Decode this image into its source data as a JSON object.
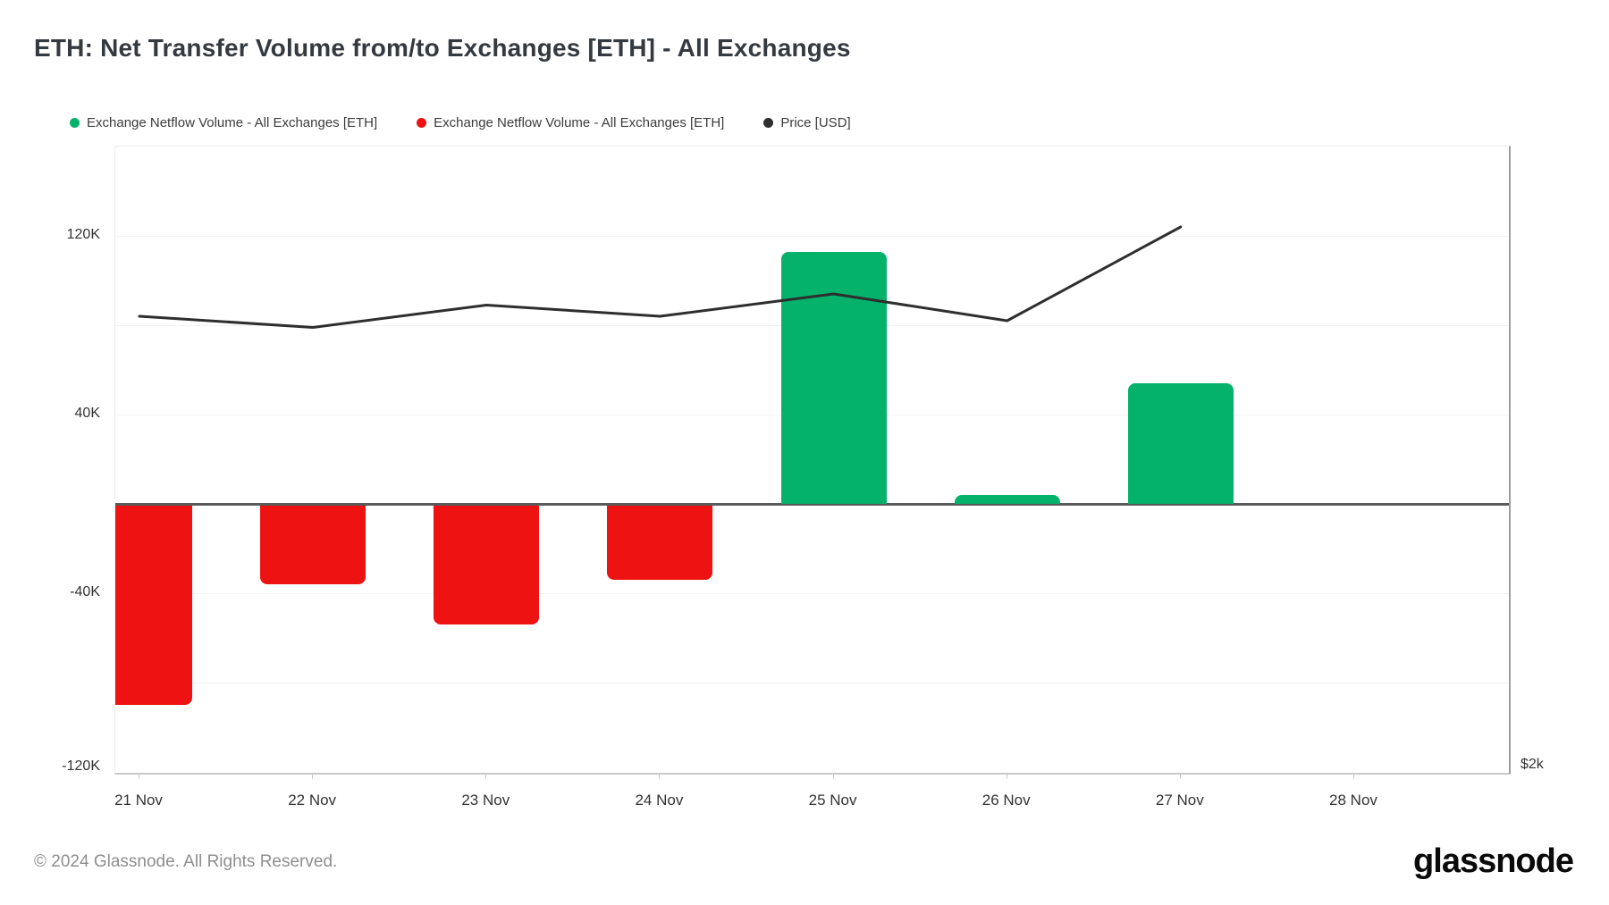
{
  "header": {
    "title": "ETH: Net Transfer Volume from/to Exchanges [ETH] - All Exchanges"
  },
  "legend": {
    "items": [
      {
        "name": "netflow-positive",
        "label": "Exchange Netflow Volume - All Exchanges [ETH]",
        "color": "#05b26c"
      },
      {
        "name": "netflow-negative",
        "label": "Exchange Netflow Volume - All Exchanges [ETH]",
        "color": "#ee1212"
      },
      {
        "name": "price",
        "label": "Price [USD]",
        "color": "#2e2e2e"
      }
    ]
  },
  "chart_data": {
    "type": "bar",
    "title": "ETH: Net Transfer Volume from/to Exchanges [ETH] - All Exchanges",
    "categories": [
      "21 Nov",
      "22 Nov",
      "23 Nov",
      "24 Nov",
      "25 Nov",
      "26 Nov",
      "27 Nov",
      "28 Nov"
    ],
    "series": [
      {
        "name": "Exchange Netflow Volume - All Exchanges [ETH]",
        "type": "bar",
        "unit": "ETH",
        "values": [
          -90000,
          -36000,
          -54000,
          -34000,
          113000,
          4000,
          54000,
          null
        ],
        "positive_color": "#05b26c",
        "negative_color": "#ee1212"
      },
      {
        "name": "Price [USD]",
        "type": "line",
        "color": "#2e2e2e",
        "values_on_left_axis_scale": [
          84000,
          79000,
          89000,
          84000,
          94000,
          82000,
          124000,
          null
        ]
      }
    ],
    "xlabel": "",
    "ylabel": "",
    "ylim": [
      -120400,
      160000
    ],
    "grid_step": 40000,
    "grid": true,
    "y_ticks": [
      {
        "value": 120000,
        "label": "120K"
      },
      {
        "value": 40000,
        "label": "40K"
      },
      {
        "value": -40000,
        "label": "-40K"
      },
      {
        "value": -120000,
        "label": "-120K"
      }
    ],
    "right_axis_label": "$2k",
    "legend_position": "top-left"
  },
  "footer": {
    "copyright": "© 2024 Glassnode. All Rights Reserved.",
    "logo_text": "glassnode"
  }
}
